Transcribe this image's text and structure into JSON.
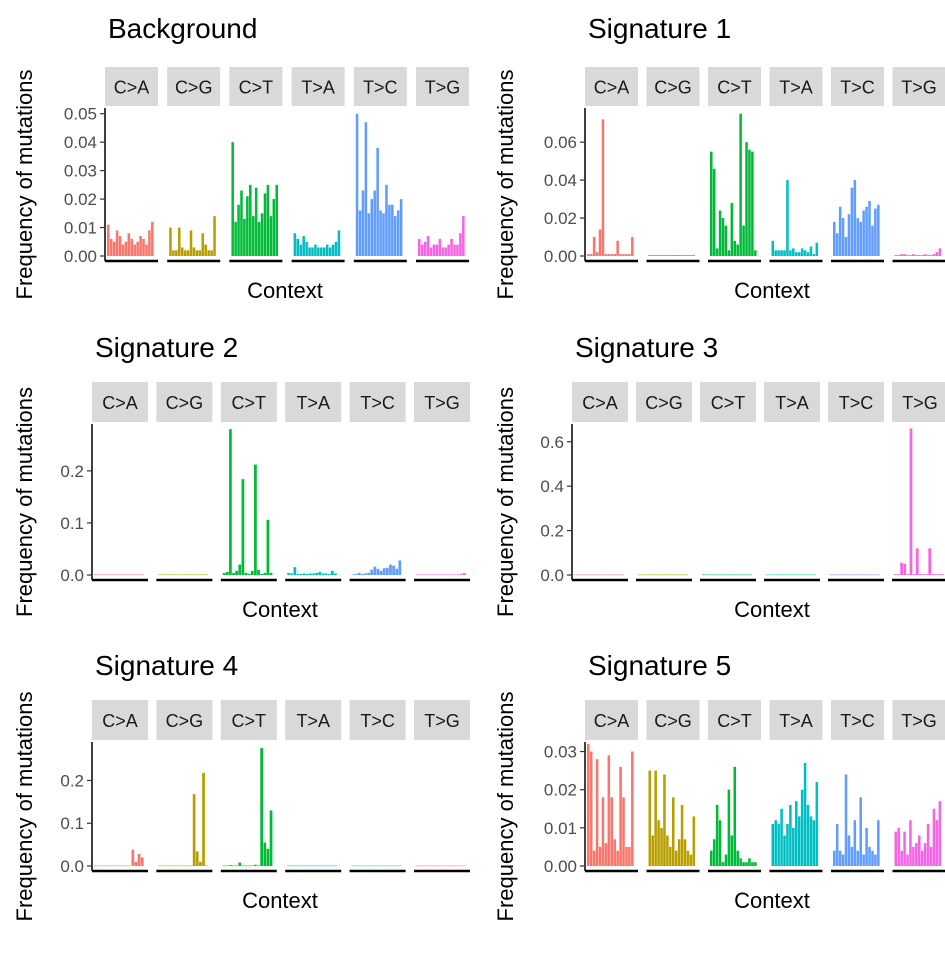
{
  "colors": {
    "C>A": "#F8766D",
    "C>G": "#B79F00",
    "C>T": "#00BA38",
    "T>A": "#00BFC4",
    "T>C": "#619CFF",
    "T>G": "#F564E3",
    "strip": "#d9d9d9"
  },
  "chart_data": [
    {
      "type": "bar",
      "title": "Background",
      "xlabel": "Context",
      "ylabel": "Frequency of mutations",
      "ylim": [
        0,
        0.052
      ],
      "yticks": [
        0,
        0.01,
        0.02,
        0.03,
        0.04,
        0.05
      ],
      "tick_labels": [
        "0.00",
        "0.01",
        "0.02",
        "0.03",
        "0.04",
        "0.05"
      ],
      "facets": [
        "C>A",
        "C>G",
        "C>T",
        "T>A",
        "T>C",
        "T>G"
      ],
      "series": [
        {
          "name": "C>A",
          "values": [
            0.011,
            0.006,
            0.005,
            0.009,
            0.007,
            0.004,
            0.005,
            0.008,
            0.006,
            0.004,
            0.005,
            0.007,
            0.006,
            0.004,
            0.009,
            0.012
          ]
        },
        {
          "name": "C>G",
          "values": [
            0.01,
            0.002,
            0.002,
            0.01,
            0.003,
            0.002,
            0.002,
            0.009,
            0.003,
            0.002,
            0.002,
            0.008,
            0.004,
            0.002,
            0.002,
            0.014
          ]
        },
        {
          "name": "C>T",
          "values": [
            0.04,
            0.012,
            0.018,
            0.023,
            0.013,
            0.021,
            0.025,
            0.014,
            0.024,
            0.012,
            0.015,
            0.022,
            0.025,
            0.014,
            0.02,
            0.025
          ]
        },
        {
          "name": "T>A",
          "values": [
            0.008,
            0.006,
            0.004,
            0.007,
            0.005,
            0.003,
            0.003,
            0.004,
            0.003,
            0.003,
            0.003,
            0.004,
            0.003,
            0.004,
            0.005,
            0.009
          ]
        },
        {
          "name": "T>C",
          "values": [
            0.05,
            0.016,
            0.023,
            0.047,
            0.015,
            0.02,
            0.023,
            0.038,
            0.016,
            0.015,
            0.025,
            0.018,
            0.018,
            0.014,
            0.016,
            0.02
          ]
        },
        {
          "name": "T>G",
          "values": [
            0.006,
            0.004,
            0.005,
            0.007,
            0.003,
            0.004,
            0.004,
            0.006,
            0.003,
            0.003,
            0.004,
            0.006,
            0.004,
            0.004,
            0.008,
            0.014
          ]
        }
      ]
    },
    {
      "type": "bar",
      "title": "Signature 1",
      "xlabel": "Context",
      "ylabel": "Frequency of mutations",
      "ylim": [
        0,
        0.078
      ],
      "yticks": [
        0,
        0.02,
        0.04,
        0.06
      ],
      "tick_labels": [
        "0.00",
        "0.02",
        "0.04",
        "0.06"
      ],
      "facets": [
        "C>A",
        "C>G",
        "C>T",
        "T>A",
        "T>C",
        "T>G"
      ],
      "series": [
        {
          "name": "C>A",
          "values": [
            0.001,
            0.001,
            0.01,
            0.002,
            0.014,
            0.072,
            0.001,
            0.001,
            0.001,
            0.001,
            0.008,
            0.001,
            0.001,
            0.001,
            0.001,
            0.01
          ]
        },
        {
          "name": "C>G",
          "values": [
            0.0005,
            0.0005,
            0.0005,
            0.0005,
            0.0005,
            0.0005,
            0.0005,
            0.0005,
            0.0005,
            0.0005,
            0.0005,
            0.0005,
            0.0005,
            0.0005,
            0.0005,
            0.0005
          ]
        },
        {
          "name": "C>T",
          "values": [
            0.055,
            0.046,
            0.004,
            0.024,
            0.02,
            0.016,
            0.003,
            0.028,
            0.008,
            0.006,
            0.075,
            0.016,
            0.06,
            0.056,
            0.055,
            0.003
          ]
        },
        {
          "name": "T>A",
          "values": [
            0.008,
            0.003,
            0.003,
            0.003,
            0.003,
            0.04,
            0.003,
            0.004,
            0.002,
            0.002,
            0.004,
            0.003,
            0.002,
            0.005,
            0.001,
            0.007
          ]
        },
        {
          "name": "T>C",
          "values": [
            0.018,
            0.012,
            0.026,
            0.02,
            0.01,
            0.022,
            0.036,
            0.04,
            0.02,
            0.018,
            0.024,
            0.026,
            0.029,
            0.016,
            0.025,
            0.027
          ]
        },
        {
          "name": "T>G",
          "values": [
            0.0005,
            0.0005,
            0.001,
            0.001,
            0.0005,
            0.0005,
            0.001,
            0.0005,
            0.0005,
            0.0005,
            0.001,
            0.0005,
            0.0005,
            0.001,
            0.002,
            0.004
          ]
        }
      ]
    },
    {
      "type": "bar",
      "title": "Signature 2",
      "xlabel": "Context",
      "ylabel": "Frequency of mutations",
      "ylim": [
        0,
        0.29
      ],
      "yticks": [
        0,
        0.1,
        0.2
      ],
      "tick_labels": [
        "0.0",
        "0.1",
        "0.2"
      ],
      "facets": [
        "C>A",
        "C>G",
        "C>T",
        "T>A",
        "T>C",
        "T>G"
      ],
      "series": [
        {
          "name": "C>A",
          "values": [
            0.001,
            0.001,
            0.001,
            0.001,
            0.001,
            0.001,
            0.001,
            0.001,
            0.001,
            0.001,
            0.001,
            0.001,
            0.001,
            0.001,
            0.001,
            0.001
          ]
        },
        {
          "name": "C>G",
          "values": [
            0.001,
            0.001,
            0.001,
            0.001,
            0.001,
            0.001,
            0.001,
            0.001,
            0.001,
            0.001,
            0.001,
            0.001,
            0.001,
            0.001,
            0.001,
            0.001
          ]
        },
        {
          "name": "C>T",
          "values": [
            0.004,
            0.006,
            0.28,
            0.004,
            0.008,
            0.02,
            0.184,
            0.004,
            0.002,
            0.008,
            0.212,
            0.01,
            0.002,
            0.004,
            0.106,
            0.004
          ]
        },
        {
          "name": "T>A",
          "values": [
            0.004,
            0.003,
            0.015,
            0.002,
            0.002,
            0.003,
            0.002,
            0.003,
            0.003,
            0.004,
            0.006,
            0.003,
            0.003,
            0.002,
            0.008,
            0.003
          ]
        },
        {
          "name": "T>C",
          "values": [
            0.001,
            0.002,
            0.004,
            0.002,
            0.003,
            0.004,
            0.01,
            0.016,
            0.012,
            0.008,
            0.013,
            0.014,
            0.02,
            0.018,
            0.012,
            0.028
          ]
        },
        {
          "name": "T>G",
          "values": [
            0.001,
            0.001,
            0.001,
            0.001,
            0.001,
            0.001,
            0.001,
            0.001,
            0.001,
            0.001,
            0.001,
            0.001,
            0.001,
            0.001,
            0.002,
            0.004
          ]
        }
      ]
    },
    {
      "type": "bar",
      "title": "Signature 3",
      "xlabel": "Context",
      "ylabel": "Frequency of mutations",
      "ylim": [
        0,
        0.68
      ],
      "yticks": [
        0,
        0.2,
        0.4,
        0.6
      ],
      "tick_labels": [
        "0.0",
        "0.2",
        "0.4",
        "0.6"
      ],
      "facets": [
        "C>A",
        "C>G",
        "C>T",
        "T>A",
        "T>C",
        "T>G"
      ],
      "series": [
        {
          "name": "C>A",
          "values": [
            0.002,
            0.002,
            0.002,
            0.002,
            0.002,
            0.002,
            0.002,
            0.002,
            0.002,
            0.002,
            0.002,
            0.002,
            0.002,
            0.002,
            0.002,
            0.002
          ]
        },
        {
          "name": "C>G",
          "values": [
            0.002,
            0.002,
            0.002,
            0.002,
            0.002,
            0.002,
            0.002,
            0.002,
            0.002,
            0.002,
            0.002,
            0.002,
            0.002,
            0.002,
            0.002,
            0.002
          ]
        },
        {
          "name": "C>T",
          "values": [
            0.002,
            0.002,
            0.002,
            0.002,
            0.002,
            0.002,
            0.002,
            0.002,
            0.002,
            0.002,
            0.002,
            0.002,
            0.002,
            0.002,
            0.002,
            0.002
          ]
        },
        {
          "name": "T>A",
          "values": [
            0.002,
            0.002,
            0.002,
            0.002,
            0.002,
            0.002,
            0.002,
            0.002,
            0.002,
            0.002,
            0.002,
            0.002,
            0.002,
            0.002,
            0.002,
            0.002
          ]
        },
        {
          "name": "T>C",
          "values": [
            0.002,
            0.002,
            0.002,
            0.002,
            0.002,
            0.002,
            0.002,
            0.002,
            0.002,
            0.002,
            0.002,
            0.002,
            0.002,
            0.002,
            0.002,
            0.002
          ]
        },
        {
          "name": "T>G",
          "values": [
            0.004,
            0.004,
            0.055,
            0.05,
            0.004,
            0.66,
            0.004,
            0.12,
            0.004,
            0.004,
            0.004,
            0.12,
            0.004,
            0.004,
            0.004,
            0.004
          ]
        }
      ]
    },
    {
      "type": "bar",
      "title": "Signature 4",
      "xlabel": "Context",
      "ylabel": "Frequency of mutations",
      "ylim": [
        0,
        0.29
      ],
      "yticks": [
        0,
        0.1,
        0.2
      ],
      "tick_labels": [
        "0.0",
        "0.1",
        "0.2"
      ],
      "facets": [
        "C>A",
        "C>G",
        "C>T",
        "T>A",
        "T>C",
        "T>G"
      ],
      "series": [
        {
          "name": "C>A",
          "values": [
            0.001,
            0.001,
            0.001,
            0.001,
            0.001,
            0.001,
            0.001,
            0.001,
            0.001,
            0.001,
            0.001,
            0.001,
            0.038,
            0.01,
            0.028,
            0.02
          ]
        },
        {
          "name": "C>G",
          "values": [
            0.001,
            0.001,
            0.001,
            0.001,
            0.001,
            0.001,
            0.001,
            0.001,
            0.001,
            0.001,
            0.001,
            0.168,
            0.034,
            0.01,
            0.218,
            0.001
          ]
        },
        {
          "name": "C>T",
          "values": [
            0.001,
            0.001,
            0.002,
            0.001,
            0.001,
            0.008,
            0.001,
            0.001,
            0.001,
            0.001,
            0.003,
            0.001,
            0.276,
            0.055,
            0.04,
            0.13
          ]
        },
        {
          "name": "T>A",
          "values": [
            0.001,
            0.001,
            0.001,
            0.001,
            0.001,
            0.001,
            0.001,
            0.001,
            0.001,
            0.001,
            0.001,
            0.001,
            0.001,
            0.001,
            0.001,
            0.001
          ]
        },
        {
          "name": "T>C",
          "values": [
            0.001,
            0.001,
            0.001,
            0.001,
            0.001,
            0.001,
            0.001,
            0.001,
            0.001,
            0.001,
            0.001,
            0.001,
            0.001,
            0.001,
            0.001,
            0.001
          ]
        },
        {
          "name": "T>G",
          "values": [
            0.001,
            0.001,
            0.001,
            0.001,
            0.001,
            0.001,
            0.001,
            0.001,
            0.001,
            0.001,
            0.001,
            0.001,
            0.001,
            0.001,
            0.001,
            0.001
          ]
        }
      ]
    },
    {
      "type": "bar",
      "title": "Signature 5",
      "xlabel": "Context",
      "ylabel": "Frequency of mutations",
      "ylim": [
        0,
        0.0325
      ],
      "yticks": [
        0,
        0.01,
        0.02,
        0.03
      ],
      "tick_labels": [
        "0.00",
        "0.01",
        "0.02",
        "0.03"
      ],
      "facets": [
        "C>A",
        "C>G",
        "C>T",
        "T>A",
        "T>C",
        "T>G"
      ],
      "series": [
        {
          "name": "C>A",
          "values": [
            0.032,
            0.03,
            0.004,
            0.028,
            0.005,
            0.018,
            0.006,
            0.029,
            0.018,
            0.007,
            0.004,
            0.026,
            0.018,
            0.005,
            0.005,
            0.03
          ]
        },
        {
          "name": "C>G",
          "values": [
            0.025,
            0.008,
            0.025,
            0.012,
            0.01,
            0.024,
            0.008,
            0.005,
            0.018,
            0.004,
            0.007,
            0.016,
            0.007,
            0.004,
            0.003,
            0.013
          ]
        },
        {
          "name": "C>T",
          "values": [
            0.004,
            0.007,
            0.016,
            0.012,
            0.001,
            0.003,
            0.02,
            0.008,
            0.026,
            0.004,
            0.002,
            0.001,
            0.001,
            0.002,
            0.001,
            0.001
          ]
        },
        {
          "name": "T>A",
          "values": [
            0.011,
            0.012,
            0.011,
            0.015,
            0.008,
            0.011,
            0.016,
            0.01,
            0.017,
            0.013,
            0.02,
            0.027,
            0.016,
            0.013,
            0.012,
            0.022
          ]
        },
        {
          "name": "T>C",
          "values": [
            0.004,
            0.011,
            0.004,
            0.003,
            0.024,
            0.008,
            0.005,
            0.012,
            0.004,
            0.018,
            0.003,
            0.01,
            0.005,
            0.004,
            0.003,
            0.012
          ]
        },
        {
          "name": "T>G",
          "values": [
            0.009,
            0.01,
            0.004,
            0.009,
            0.003,
            0.012,
            0.005,
            0.006,
            0.008,
            0.004,
            0.006,
            0.011,
            0.005,
            0.015,
            0.012,
            0.017
          ]
        }
      ]
    }
  ]
}
